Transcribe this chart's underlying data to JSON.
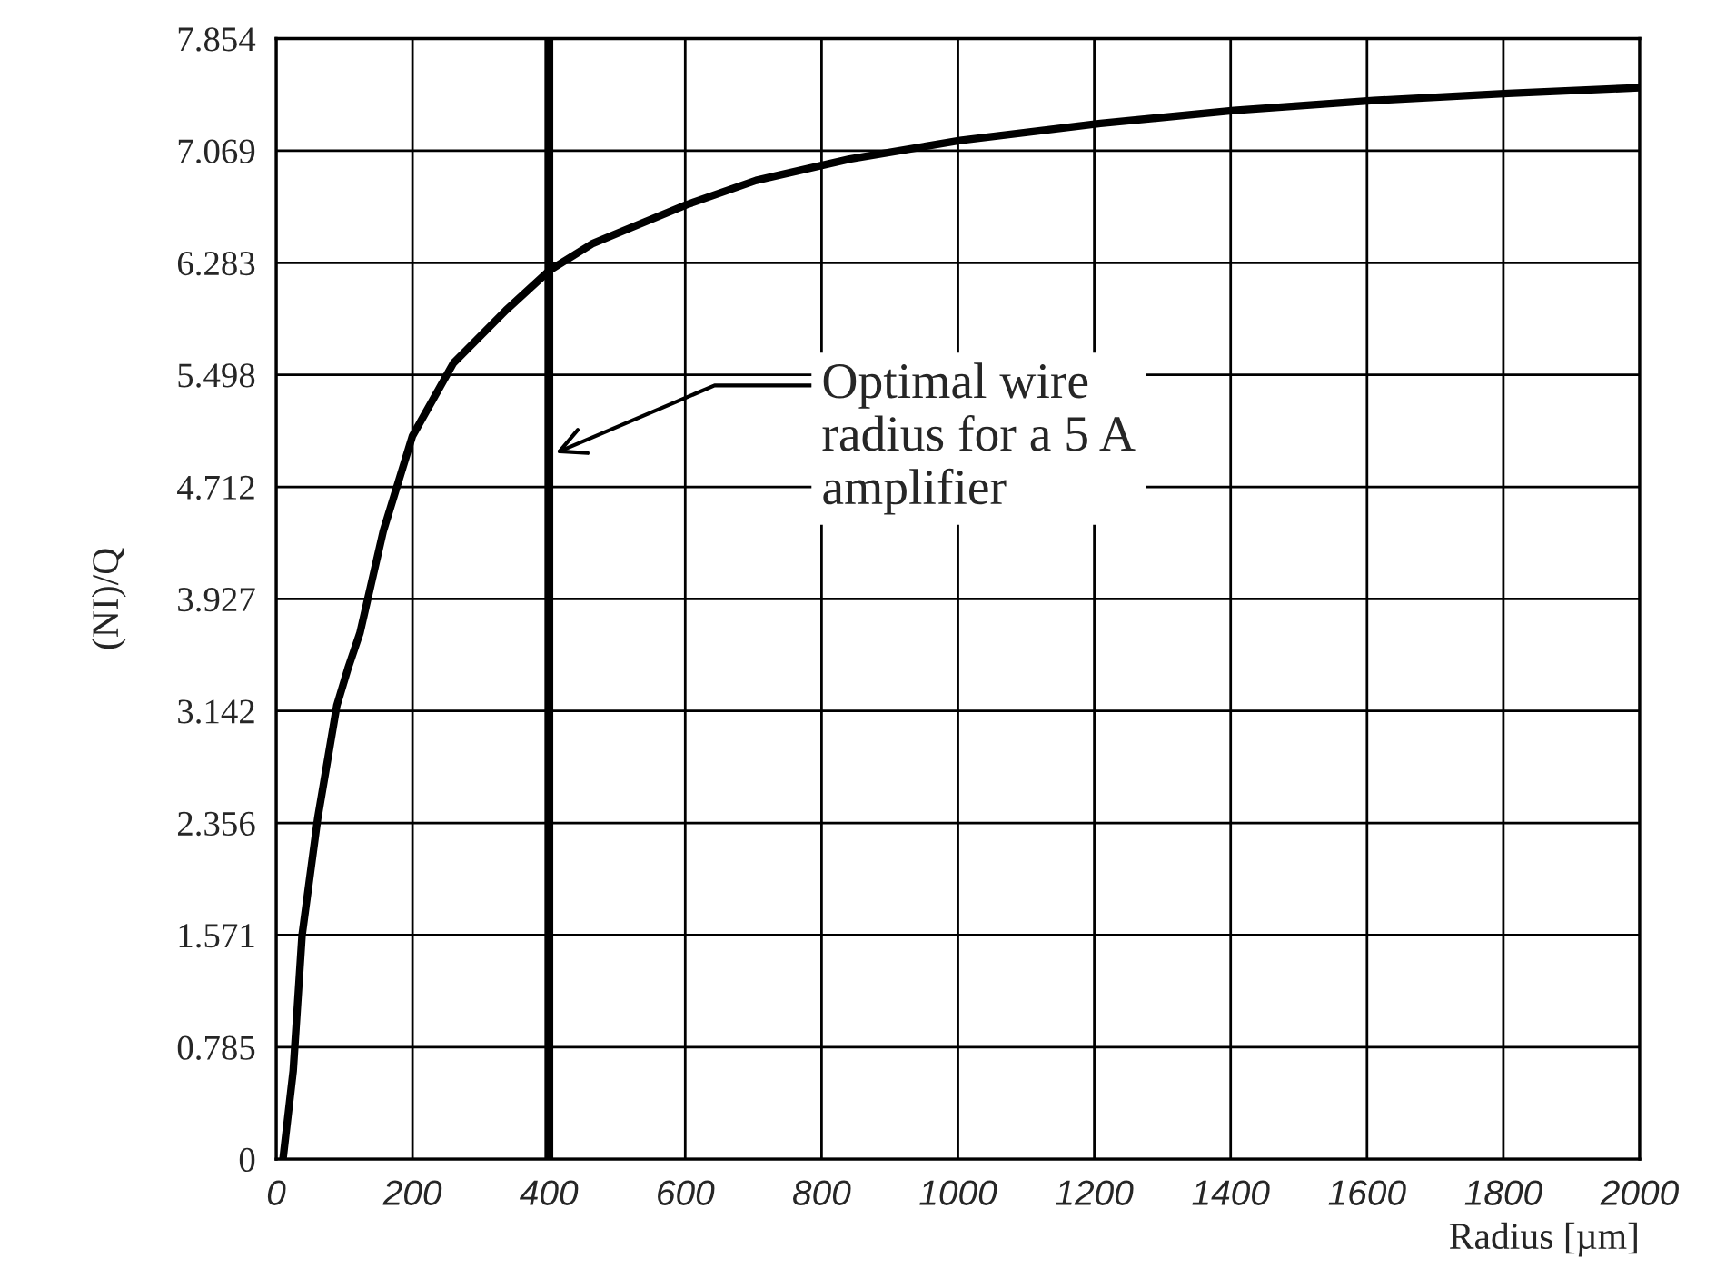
{
  "chart_data": {
    "type": "line",
    "xlabel": "Radius [µm]",
    "ylabel": "(NI)/Q",
    "x": [
      10,
      25,
      38,
      61,
      89,
      106,
      123,
      157,
      200,
      260,
      337,
      401,
      465,
      602,
      704,
      841,
      1003,
      1209,
      1405,
      1610,
      1807,
      2000
    ],
    "series": [
      {
        "color": "#000000",
        "values": [
          0,
          0.62,
          1.57,
          2.39,
          3.18,
          3.45,
          3.69,
          4.4,
          5.07,
          5.58,
          5.95,
          6.23,
          6.42,
          6.69,
          6.86,
          7.01,
          7.14,
          7.26,
          7.35,
          7.42,
          7.47,
          7.51
        ]
      }
    ],
    "xlim": [
      0,
      2000
    ],
    "xticks": [
      0,
      200,
      400,
      600,
      800,
      1000,
      1200,
      1400,
      1600,
      1800,
      2000
    ],
    "ylim": [
      0,
      7.854
    ],
    "yticks": [
      0,
      0.785,
      1.571,
      2.356,
      3.142,
      3.927,
      4.712,
      5.498,
      6.283,
      7.069,
      7.854
    ],
    "grid": true,
    "marker": "none",
    "line_style": "solid",
    "legend": false,
    "ref_lines": [
      {
        "axis": "x",
        "value": 400,
        "color": "#000000",
        "line_style": "solid"
      }
    ],
    "annotations": [
      {
        "text": "Optimal wire\nradius for a 5 A\namplifier",
        "x": 410,
        "y": 4.95
      }
    ]
  }
}
